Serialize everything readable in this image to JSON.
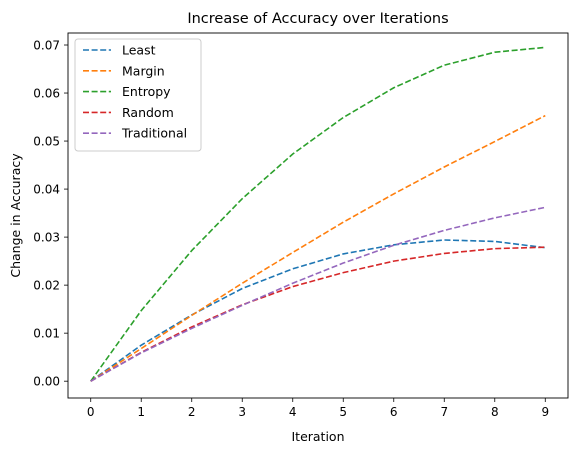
{
  "chart_data": {
    "type": "line",
    "title": "Increase of Accuracy over Iterations",
    "xlabel": "Iteration",
    "ylabel": "Change in Accuracy",
    "xlim": [
      -0.45,
      9.45
    ],
    "ylim": [
      -0.0035,
      0.0725
    ],
    "xticks": [
      0,
      1,
      2,
      3,
      4,
      5,
      6,
      7,
      8,
      9
    ],
    "yticks": [
      0.0,
      0.01,
      0.02,
      0.03,
      0.04,
      0.05,
      0.06,
      0.07
    ],
    "ytick_labels": [
      "0.00",
      "0.01",
      "0.02",
      "0.03",
      "0.04",
      "0.05",
      "0.06",
      "0.07"
    ],
    "grid": false,
    "legend_position": "top-left",
    "line_style": "dashed",
    "x": [
      0,
      1,
      2,
      3,
      4,
      5,
      6,
      7,
      8,
      9
    ],
    "series": [
      {
        "name": "Least",
        "color": "#1f77b4",
        "values": [
          0.0,
          0.0075,
          0.0138,
          0.0193,
          0.0234,
          0.0265,
          0.0284,
          0.0294,
          0.0291,
          0.0278
        ]
      },
      {
        "name": "Margin",
        "color": "#ff7f0e",
        "values": [
          0.0,
          0.0068,
          0.0137,
          0.0204,
          0.0268,
          0.0331,
          0.039,
          0.0446,
          0.0499,
          0.0553
        ]
      },
      {
        "name": "Entropy",
        "color": "#2ca02c",
        "values": [
          0.0,
          0.0147,
          0.0272,
          0.038,
          0.0473,
          0.0549,
          0.0611,
          0.0658,
          0.0685,
          0.0695
        ]
      },
      {
        "name": "Random",
        "color": "#d62728",
        "values": [
          0.0,
          0.006,
          0.0113,
          0.0159,
          0.0197,
          0.0226,
          0.025,
          0.0266,
          0.0276,
          0.0279
        ]
      },
      {
        "name": "Traditional",
        "color": "#9467bd",
        "values": [
          0.0,
          0.0059,
          0.011,
          0.0158,
          0.0204,
          0.0246,
          0.0283,
          0.0314,
          0.034,
          0.0362
        ]
      }
    ]
  }
}
